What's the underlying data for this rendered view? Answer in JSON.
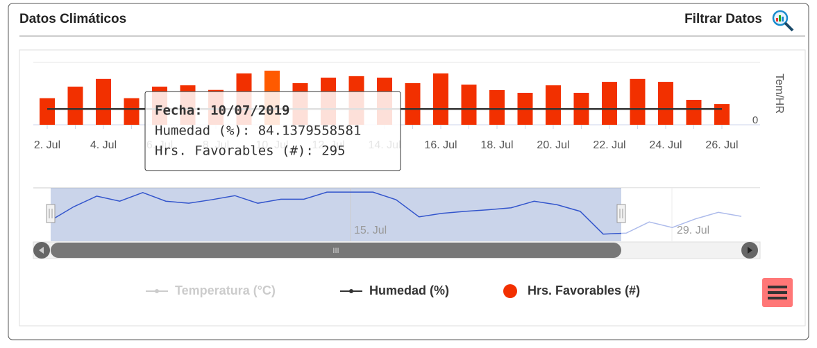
{
  "header": {
    "title": "Datos Climáticos",
    "filter": "Filtrar Datos"
  },
  "chart_data": {
    "type": "bar",
    "categories": [
      "2. Jul",
      null,
      "4. Jul",
      null,
      "6. Jul",
      null,
      "8. Jul",
      null,
      "10. Jul",
      null,
      "12. Jul",
      null,
      "14. Jul",
      null,
      "16. Jul",
      null,
      "18. Jul",
      null,
      "20. Jul",
      null,
      "22. Jul",
      null,
      "24. Jul",
      null,
      "26. Jul"
    ],
    "series": [
      {
        "name": "Temperatura (°C)",
        "color": "#cccccc",
        "visible": false,
        "values": [
          null,
          null,
          null,
          null,
          null,
          null,
          null,
          null,
          null,
          null,
          null,
          null,
          null,
          null,
          null,
          null,
          null,
          null,
          null,
          null,
          null,
          null,
          null,
          null,
          null
        ]
      },
      {
        "name": "Humedad (%)",
        "color": "#333333",
        "axis": "y2",
        "values": [
          84,
          84,
          84,
          84,
          84,
          84,
          84,
          84,
          84.1379558581,
          84,
          84,
          84,
          84,
          84,
          84,
          84,
          84,
          84,
          84,
          84,
          84,
          84,
          84,
          84,
          84
        ]
      },
      {
        "name": "Hrs. Favorables (#)",
        "color": "#f23000",
        "highlight_color": "#ff5a00",
        "values": [
          145,
          208,
          250,
          145,
          208,
          215,
          190,
          280,
          295,
          227,
          257,
          265,
          257,
          227,
          280,
          219,
          189,
          174,
          215,
          174,
          234,
          250,
          234,
          136,
          113
        ]
      }
    ],
    "ylim": [
      0,
      340
    ],
    "y2lim": [
      -30,
      420
    ],
    "y2ticks": [
      0
    ],
    "y2label": "Tem/HR",
    "tooltip": {
      "index": 8,
      "lines": [
        "Fecha: 10/07/2019",
        "Humedad (%): 84.1379558581",
        "Hrs. Favorables (#): 295"
      ]
    },
    "navigator": {
      "labels": [
        "15. Jul",
        "29. Jul"
      ],
      "ylim": [
        0,
        100
      ],
      "values": [
        37,
        64,
        85,
        75,
        92,
        75,
        71,
        78,
        86,
        71,
        79,
        79,
        93,
        93,
        93,
        78,
        44,
        51,
        55,
        58,
        62,
        75,
        68,
        55,
        10,
        12,
        34,
        23,
        40,
        53,
        45
      ]
    }
  }
}
